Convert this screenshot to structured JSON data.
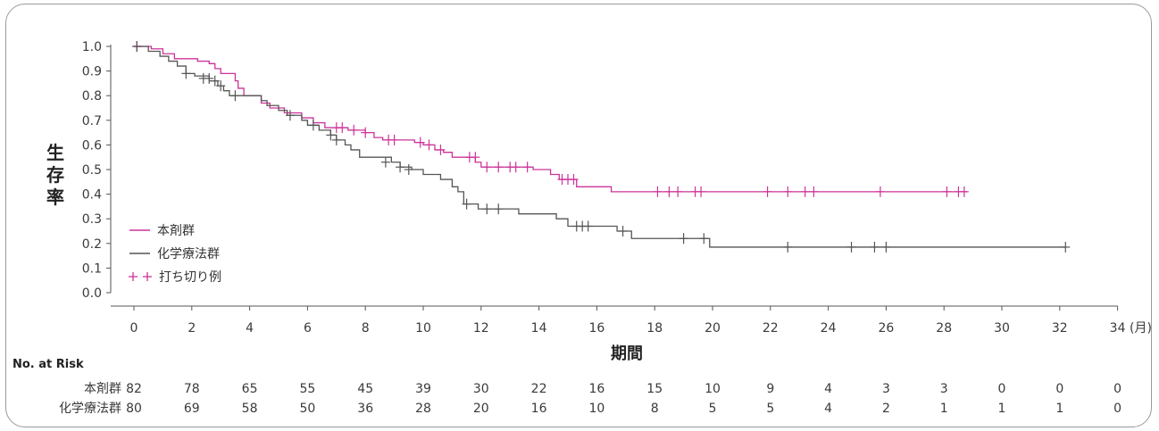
{
  "chart_data": {
    "type": "line",
    "subtype": "kaplan-meier",
    "ylabel": "生存率",
    "xlabel": "期間",
    "x_unit": "(月)",
    "xlim": [
      0,
      34
    ],
    "ylim": [
      0,
      1.0
    ],
    "x_ticks": [
      "0",
      "2",
      "4",
      "6",
      "8",
      "10",
      "12",
      "14",
      "16",
      "18",
      "20",
      "22",
      "24",
      "26",
      "28",
      "30",
      "32",
      "34"
    ],
    "y_ticks": [
      "0.0",
      "0.1",
      "0.2",
      "0.3",
      "0.4",
      "0.5",
      "0.6",
      "0.7",
      "0.8",
      "0.9",
      "1.0"
    ],
    "legend": {
      "placement": "lower-left",
      "censor_label": "打ち切り例"
    },
    "colors": {
      "drug": "#cc3399",
      "chemo": "#555555"
    },
    "series": [
      {
        "name": "本剤群",
        "color": "#cc3399",
        "steps": [
          [
            0,
            1.0
          ],
          [
            0.6,
            0.99
          ],
          [
            1.0,
            0.97
          ],
          [
            1.4,
            0.95
          ],
          [
            2.2,
            0.94
          ],
          [
            2.6,
            0.93
          ],
          [
            2.8,
            0.91
          ],
          [
            3.0,
            0.89
          ],
          [
            3.5,
            0.86
          ],
          [
            3.6,
            0.83
          ],
          [
            3.8,
            0.8
          ],
          [
            4.4,
            0.77
          ],
          [
            4.7,
            0.75
          ],
          [
            5.2,
            0.73
          ],
          [
            5.8,
            0.71
          ],
          [
            6.2,
            0.69
          ],
          [
            6.6,
            0.67
          ],
          [
            7.4,
            0.66
          ],
          [
            8.0,
            0.65
          ],
          [
            8.3,
            0.63
          ],
          [
            8.6,
            0.62
          ],
          [
            9.7,
            0.61
          ],
          [
            10.0,
            0.6
          ],
          [
            10.4,
            0.58
          ],
          [
            10.7,
            0.57
          ],
          [
            11.0,
            0.55
          ],
          [
            11.8,
            0.53
          ],
          [
            12.0,
            0.51
          ],
          [
            13.8,
            0.5
          ],
          [
            14.4,
            0.48
          ],
          [
            14.7,
            0.46
          ],
          [
            15.3,
            0.43
          ],
          [
            16.5,
            0.41
          ]
        ],
        "end_x": 28.8,
        "censors": [
          [
            0.1,
            1.0
          ],
          [
            7.0,
            0.67
          ],
          [
            7.2,
            0.67
          ],
          [
            7.6,
            0.66
          ],
          [
            8.0,
            0.65
          ],
          [
            8.8,
            0.62
          ],
          [
            9.0,
            0.62
          ],
          [
            9.9,
            0.61
          ],
          [
            10.2,
            0.6
          ],
          [
            10.6,
            0.58
          ],
          [
            11.6,
            0.55
          ],
          [
            11.8,
            0.55
          ],
          [
            12.2,
            0.51
          ],
          [
            12.6,
            0.51
          ],
          [
            13.0,
            0.51
          ],
          [
            13.2,
            0.51
          ],
          [
            13.6,
            0.51
          ],
          [
            14.8,
            0.46
          ],
          [
            15.0,
            0.46
          ],
          [
            15.2,
            0.46
          ],
          [
            18.1,
            0.41
          ],
          [
            18.5,
            0.41
          ],
          [
            18.8,
            0.41
          ],
          [
            19.4,
            0.41
          ],
          [
            19.6,
            0.41
          ],
          [
            21.9,
            0.41
          ],
          [
            22.6,
            0.41
          ],
          [
            23.2,
            0.41
          ],
          [
            23.5,
            0.41
          ],
          [
            25.8,
            0.41
          ],
          [
            28.1,
            0.41
          ],
          [
            28.5,
            0.41
          ],
          [
            28.7,
            0.41
          ]
        ]
      },
      {
        "name": "化学療法群",
        "color": "#555555",
        "steps": [
          [
            0,
            1.0
          ],
          [
            0.5,
            0.98
          ],
          [
            0.9,
            0.96
          ],
          [
            1.2,
            0.94
          ],
          [
            1.5,
            0.92
          ],
          [
            1.8,
            0.89
          ],
          [
            2.1,
            0.88
          ],
          [
            2.6,
            0.86
          ],
          [
            2.9,
            0.84
          ],
          [
            3.1,
            0.82
          ],
          [
            3.3,
            0.8
          ],
          [
            4.4,
            0.78
          ],
          [
            4.6,
            0.76
          ],
          [
            5.0,
            0.74
          ],
          [
            5.3,
            0.72
          ],
          [
            5.8,
            0.7
          ],
          [
            6.0,
            0.68
          ],
          [
            6.4,
            0.66
          ],
          [
            6.8,
            0.64
          ],
          [
            7.0,
            0.62
          ],
          [
            7.3,
            0.6
          ],
          [
            7.5,
            0.58
          ],
          [
            7.8,
            0.55
          ],
          [
            8.9,
            0.53
          ],
          [
            9.2,
            0.51
          ],
          [
            9.6,
            0.5
          ],
          [
            10.0,
            0.48
          ],
          [
            10.6,
            0.46
          ],
          [
            11.0,
            0.43
          ],
          [
            11.2,
            0.41
          ],
          [
            11.4,
            0.36
          ],
          [
            11.9,
            0.34
          ],
          [
            13.3,
            0.32
          ],
          [
            14.6,
            0.3
          ],
          [
            15.0,
            0.27
          ],
          [
            16.7,
            0.25
          ],
          [
            17.2,
            0.22
          ],
          [
            19.9,
            0.185
          ]
        ],
        "end_x": 32.2,
        "censors": [
          [
            0.1,
            1.0
          ],
          [
            1.8,
            0.89
          ],
          [
            2.4,
            0.87
          ],
          [
            2.6,
            0.87
          ],
          [
            2.8,
            0.86
          ],
          [
            3.0,
            0.84
          ],
          [
            3.5,
            0.8
          ],
          [
            5.4,
            0.72
          ],
          [
            6.2,
            0.68
          ],
          [
            6.8,
            0.64
          ],
          [
            7.0,
            0.62
          ],
          [
            8.7,
            0.53
          ],
          [
            9.2,
            0.51
          ],
          [
            9.5,
            0.5
          ],
          [
            11.5,
            0.36
          ],
          [
            12.2,
            0.34
          ],
          [
            12.6,
            0.34
          ],
          [
            15.3,
            0.27
          ],
          [
            15.5,
            0.27
          ],
          [
            15.7,
            0.27
          ],
          [
            16.9,
            0.25
          ],
          [
            19.0,
            0.22
          ],
          [
            19.7,
            0.22
          ],
          [
            22.6,
            0.185
          ],
          [
            24.8,
            0.185
          ],
          [
            25.6,
            0.185
          ],
          [
            26.0,
            0.185
          ],
          [
            32.2,
            0.185
          ]
        ]
      }
    ]
  },
  "risk_table": {
    "header": "No. at Risk",
    "rows": [
      {
        "label": "本剤群",
        "values": [
          "82",
          "78",
          "65",
          "55",
          "45",
          "39",
          "30",
          "22",
          "16",
          "15",
          "10",
          "9",
          "4",
          "3",
          "3",
          "0",
          "0",
          "0"
        ]
      },
      {
        "label": "化学療法群",
        "values": [
          "80",
          "69",
          "58",
          "50",
          "36",
          "28",
          "20",
          "16",
          "10",
          "8",
          "5",
          "5",
          "4",
          "2",
          "1",
          "1",
          "1",
          "0"
        ]
      }
    ]
  }
}
